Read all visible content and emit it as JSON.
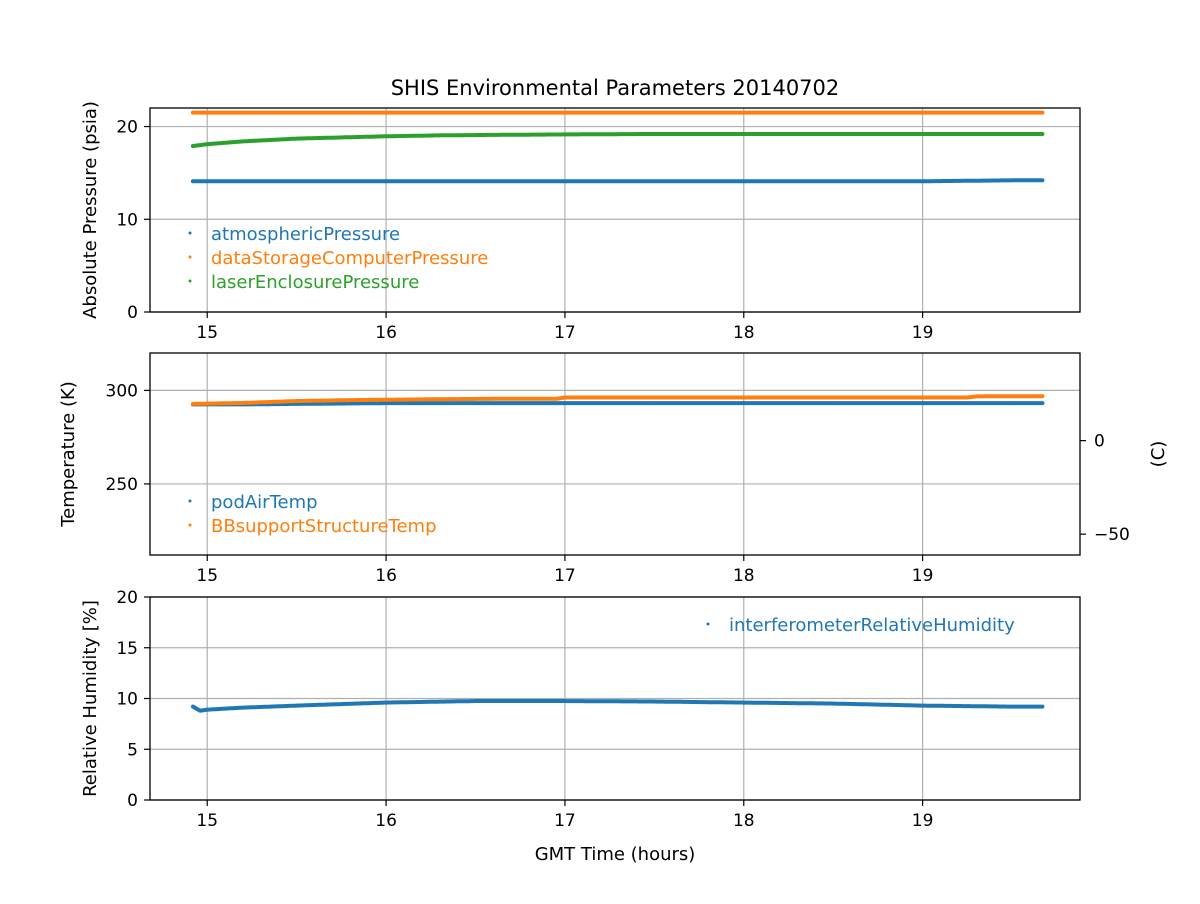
{
  "title": "SHIS Environmental Parameters 20140702",
  "xlabel": "GMT Time (hours)",
  "colors": {
    "blue": "#1f77b4",
    "orange": "#ff7f0e",
    "green": "#2ca02c",
    "grid": "#b0b0b0"
  },
  "chart_data": [
    {
      "type": "scatter",
      "ylabel": "Absolute Pressure (psia)",
      "xlim": [
        14.68,
        19.88
      ],
      "ylim": [
        0,
        22
      ],
      "xticks": [
        15,
        16,
        17,
        18,
        19
      ],
      "yticks": [
        0,
        10,
        20
      ],
      "grid": true,
      "legend_placement": "lower-left",
      "series": [
        {
          "name": "atmosphericPressure",
          "color": "#1f77b4",
          "x": [
            14.92,
            15.5,
            16.0,
            16.5,
            17.0,
            17.5,
            18.0,
            18.5,
            19.0,
            19.5,
            19.67
          ],
          "y": [
            14.1,
            14.1,
            14.1,
            14.1,
            14.1,
            14.1,
            14.1,
            14.1,
            14.1,
            14.2,
            14.2
          ]
        },
        {
          "name": "dataStorageComputerPressure",
          "color": "#ff7f0e",
          "x": [
            14.92,
            15.5,
            16.0,
            16.5,
            17.0,
            17.5,
            18.0,
            18.5,
            19.0,
            19.5,
            19.67
          ],
          "y": [
            21.5,
            21.5,
            21.5,
            21.5,
            21.5,
            21.5,
            21.5,
            21.5,
            21.5,
            21.5,
            21.5
          ]
        },
        {
          "name": "laserEnclosurePressure",
          "color": "#2ca02c",
          "x": [
            14.92,
            15.0,
            15.2,
            15.5,
            15.8,
            16.0,
            16.3,
            16.6,
            17.0,
            17.5,
            18.0,
            18.5,
            19.0,
            19.5,
            19.67
          ],
          "y": [
            17.9,
            18.1,
            18.4,
            18.7,
            18.85,
            18.95,
            19.05,
            19.1,
            19.15,
            19.2,
            19.2,
            19.2,
            19.2,
            19.2,
            19.2
          ]
        }
      ]
    },
    {
      "type": "scatter",
      "ylabel": "Temperature (K)",
      "y2label": "(C)",
      "xlim": [
        14.68,
        19.88
      ],
      "ylim": [
        212,
        320
      ],
      "xticks": [
        15,
        16,
        17,
        18,
        19
      ],
      "yticks": [
        250,
        300
      ],
      "y2ticks": [
        -50,
        0
      ],
      "grid": true,
      "legend_placement": "lower-left",
      "series": [
        {
          "name": "podAirTemp",
          "color": "#1f77b4",
          "x": [
            14.92,
            15.2,
            15.5,
            16.0,
            16.5,
            17.0,
            17.5,
            18.0,
            18.5,
            19.0,
            19.5,
            19.67
          ],
          "y": [
            292.5,
            292.5,
            292.8,
            293.2,
            293.2,
            293.2,
            293.2,
            293.2,
            293.2,
            293.2,
            293.2,
            293.2
          ]
        },
        {
          "name": "BBsupportStructureTemp",
          "color": "#ff7f0e",
          "x": [
            14.92,
            15.2,
            15.5,
            15.8,
            16.0,
            16.3,
            16.6,
            16.95,
            17.0,
            17.5,
            18.0,
            18.5,
            19.0,
            19.25,
            19.3,
            19.5,
            19.67
          ],
          "y": [
            292.8,
            293.3,
            294.3,
            294.8,
            295.0,
            295.3,
            295.5,
            295.5,
            296.2,
            296.2,
            296.2,
            296.2,
            296.2,
            296.2,
            296.8,
            296.9,
            296.9
          ]
        }
      ]
    },
    {
      "type": "scatter",
      "ylabel": "Relative Humidity [%]",
      "xlim": [
        14.68,
        19.88
      ],
      "ylim": [
        0,
        20
      ],
      "xticks": [
        15,
        16,
        17,
        18,
        19
      ],
      "yticks": [
        0,
        5,
        10,
        15,
        20
      ],
      "grid": true,
      "legend_placement": "upper-right",
      "series": [
        {
          "name": "interferometerRelativeHumidity",
          "color": "#1f77b4",
          "x": [
            14.92,
            14.96,
            15.0,
            15.2,
            15.5,
            16.0,
            16.5,
            17.0,
            17.5,
            18.0,
            18.5,
            19.0,
            19.5,
            19.67
          ],
          "y": [
            9.2,
            8.8,
            8.9,
            9.1,
            9.3,
            9.6,
            9.75,
            9.75,
            9.7,
            9.6,
            9.5,
            9.3,
            9.2,
            9.2
          ]
        }
      ]
    }
  ]
}
